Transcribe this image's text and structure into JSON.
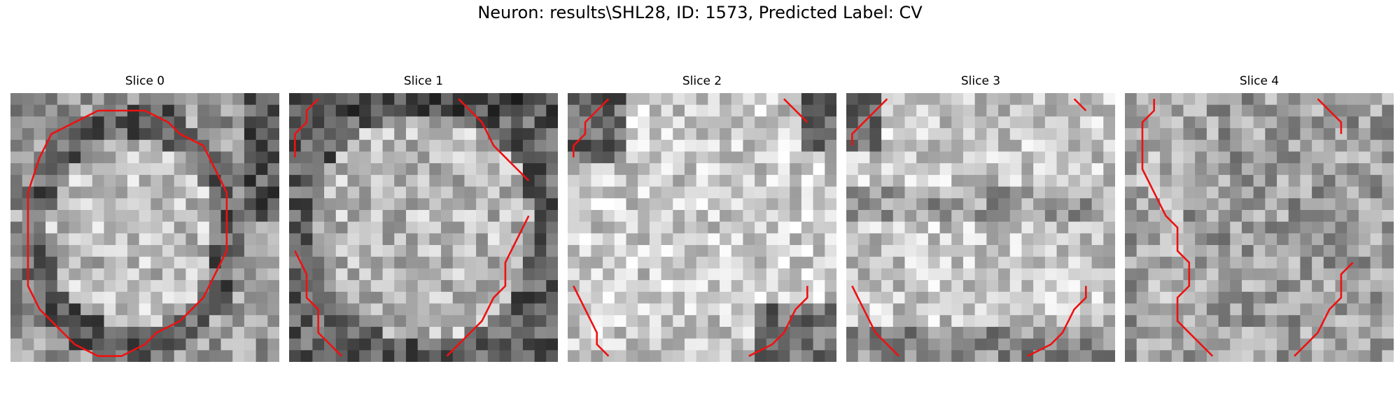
{
  "figure": {
    "title": "Neuron: results\\SHL28, ID: 1573, Predicted Label: CV",
    "contour_color": "#ee1111",
    "panels": [
      {
        "title": "Slice 0",
        "contours": [
          [
            [
              7,
              1
            ],
            [
              5,
              2
            ],
            [
              3,
              3
            ],
            [
              2,
              5
            ],
            [
              1,
              8
            ],
            [
              1,
              11
            ],
            [
              1,
              14
            ],
            [
              1,
              16
            ],
            [
              2,
              18
            ],
            [
              3,
              19
            ],
            [
              5,
              21
            ],
            [
              7,
              22
            ],
            [
              9,
              22
            ],
            [
              11,
              21
            ],
            [
              12,
              20
            ],
            [
              14,
              19
            ],
            [
              15,
              18
            ],
            [
              16,
              17
            ],
            [
              17,
              15
            ],
            [
              18,
              13
            ],
            [
              18,
              11
            ],
            [
              18,
              8
            ],
            [
              17,
              6
            ],
            [
              16,
              4
            ],
            [
              14,
              3
            ],
            [
              13,
              2
            ],
            [
              11,
              1
            ],
            [
              9,
              1
            ],
            [
              7,
              1
            ]
          ]
        ]
      },
      {
        "title": "Slice 1",
        "contours": [
          [
            [
              2,
              0
            ],
            [
              1,
              1
            ],
            [
              1,
              2
            ],
            [
              0,
              3
            ],
            [
              0,
              5
            ]
          ],
          [
            [
              14,
              0
            ],
            [
              15,
              1
            ],
            [
              16,
              2
            ],
            [
              17,
              4
            ],
            [
              18,
              5
            ],
            [
              19,
              6
            ],
            [
              20,
              7
            ]
          ],
          [
            [
              0,
              13
            ],
            [
              1,
              15
            ],
            [
              1,
              17
            ],
            [
              2,
              18
            ],
            [
              2,
              20
            ],
            [
              3,
              21
            ],
            [
              4,
              22
            ]
          ],
          [
            [
              13,
              22
            ],
            [
              15,
              20
            ],
            [
              16,
              19
            ],
            [
              17,
              17
            ],
            [
              18,
              16
            ],
            [
              18,
              14
            ],
            [
              19,
              12
            ],
            [
              20,
              10
            ]
          ]
        ]
      },
      {
        "title": "Slice 2",
        "contours": [
          [
            [
              3,
              0
            ],
            [
              2,
              1
            ],
            [
              1,
              2
            ],
            [
              1,
              3
            ],
            [
              0,
              4
            ],
            [
              0,
              5
            ]
          ],
          [
            [
              18,
              0
            ],
            [
              19,
              1
            ],
            [
              20,
              2
            ]
          ],
          [
            [
              0,
              16
            ],
            [
              1,
              18
            ],
            [
              2,
              20
            ],
            [
              2,
              21
            ],
            [
              3,
              22
            ]
          ],
          [
            [
              15,
              22
            ],
            [
              17,
              21
            ],
            [
              18,
              20
            ],
            [
              19,
              18
            ],
            [
              20,
              17
            ],
            [
              20,
              16
            ]
          ]
        ]
      },
      {
        "title": "Slice 3",
        "contours": [
          [
            [
              3,
              0
            ],
            [
              2,
              1
            ],
            [
              1,
              2
            ],
            [
              0,
              3
            ],
            [
              0,
              4
            ]
          ],
          [
            [
              19,
              0
            ],
            [
              20,
              1
            ]
          ],
          [
            [
              0,
              16
            ],
            [
              1,
              18
            ],
            [
              2,
              20
            ],
            [
              3,
              21
            ],
            [
              4,
              22
            ]
          ],
          [
            [
              15,
              22
            ],
            [
              17,
              21
            ],
            [
              18,
              20
            ],
            [
              19,
              18
            ],
            [
              20,
              17
            ],
            [
              20,
              16
            ]
          ]
        ]
      },
      {
        "title": "Slice 4",
        "contours": [
          [
            [
              2,
              0
            ],
            [
              2,
              1
            ],
            [
              1,
              2
            ],
            [
              1,
              6
            ],
            [
              2,
              8
            ],
            [
              3,
              10
            ],
            [
              4,
              11
            ],
            [
              4,
              13
            ],
            [
              5,
              14
            ],
            [
              5,
              16
            ],
            [
              4,
              17
            ],
            [
              4,
              19
            ],
            [
              5,
              20
            ],
            [
              6,
              21
            ],
            [
              7,
              22
            ]
          ],
          [
            [
              16,
              0
            ],
            [
              17,
              1
            ],
            [
              18,
              2
            ],
            [
              18,
              3
            ]
          ],
          [
            [
              14,
              22
            ],
            [
              15,
              21
            ],
            [
              16,
              20
            ],
            [
              17,
              18
            ],
            [
              18,
              17
            ],
            [
              18,
              15
            ],
            [
              19,
              14
            ]
          ]
        ]
      }
    ]
  }
}
